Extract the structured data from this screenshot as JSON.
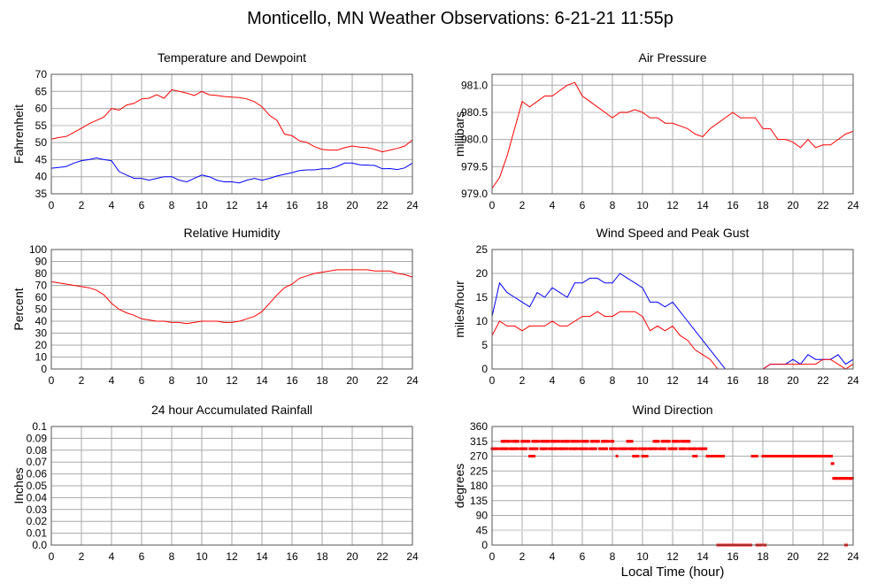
{
  "page": {
    "title": "Monticello, MN Weather Observations: 6-21-21 11:55p",
    "xlabel": "Local Time (hour)"
  },
  "colors": {
    "red": "#ff0000",
    "blue": "#0000ff",
    "grid": "#a8a8a8",
    "grid_highlight": "#dddddd",
    "frame": "#555555"
  },
  "chart_data": [
    {
      "type": "line",
      "title": "Temperature and Dewpoint",
      "xlabel": "",
      "ylabel": "Fahrenheit",
      "xlim": [
        0,
        24
      ],
      "ylim": [
        35,
        70
      ],
      "xticks": [
        0,
        2,
        4,
        6,
        8,
        10,
        12,
        14,
        16,
        18,
        20,
        22,
        24
      ],
      "yticks": [
        35,
        40,
        45,
        50,
        55,
        60,
        65,
        70
      ],
      "ytick_labels": [
        "35",
        "40",
        "45",
        "50",
        "55",
        "60",
        "65",
        "70"
      ],
      "highlight_gridline": 55,
      "x_step": 0.5,
      "series": [
        {
          "name": "Temperature",
          "color": "#ff0000",
          "values": [
            51,
            51.5,
            51.8,
            53,
            54.2,
            55.5,
            56.5,
            57.5,
            60,
            59.5,
            61,
            61.5,
            62.8,
            63,
            64,
            63,
            65.5,
            65,
            64.5,
            63.8,
            65,
            64,
            63.8,
            63.5,
            63.3,
            63.2,
            62.8,
            62,
            60.5,
            58,
            56.5,
            52.5,
            52,
            50.5,
            50,
            48.8,
            48,
            47.8,
            47.8,
            48.5,
            49,
            48.7,
            48.5,
            48,
            47.3,
            47.8,
            48.3,
            49,
            50.8
          ]
        },
        {
          "name": "Dewpoint",
          "color": "#0000ff",
          "values": [
            42.5,
            42.7,
            43,
            44,
            44.7,
            45,
            45.5,
            45,
            44.7,
            41.5,
            40.5,
            39.5,
            39.5,
            39,
            39.5,
            40,
            40,
            39,
            38.5,
            39.5,
            40.5,
            40,
            39,
            38.5,
            38.5,
            38.2,
            39,
            39.5,
            39,
            39.5,
            40.2,
            40.7,
            41.2,
            41.8,
            42,
            42,
            42.3,
            42.3,
            43,
            44,
            44,
            43.5,
            43.4,
            43.3,
            42.3,
            42.4,
            42.1,
            42.6,
            44
          ]
        }
      ]
    },
    {
      "type": "line",
      "title": "Air Pressure",
      "xlabel": "",
      "ylabel": "millibars",
      "xlim": [
        0,
        24
      ],
      "ylim": [
        979.0,
        981.2
      ],
      "xticks": [
        0,
        2,
        4,
        6,
        8,
        10,
        12,
        14,
        16,
        18,
        20,
        22,
        24
      ],
      "yticks": [
        979.0,
        979.5,
        980.0,
        980.5,
        981.0
      ],
      "ytick_labels": [
        "979.0",
        "979.5",
        "980.0",
        "980.5",
        "981.0"
      ],
      "highlight_gridline": 980.5,
      "x_step": 0.5,
      "series": [
        {
          "name": "Pressure",
          "color": "#ff0000",
          "values": [
            979.1,
            979.3,
            979.7,
            980.2,
            980.7,
            980.6,
            980.7,
            980.8,
            980.8,
            980.9,
            981.0,
            981.05,
            980.8,
            980.7,
            980.6,
            980.5,
            980.4,
            980.5,
            980.5,
            980.55,
            980.5,
            980.4,
            980.4,
            980.3,
            980.3,
            980.25,
            980.2,
            980.1,
            980.05,
            980.2,
            980.3,
            980.4,
            980.5,
            980.4,
            980.4,
            980.4,
            980.2,
            980.2,
            980.0,
            980.0,
            979.95,
            979.85,
            980.0,
            979.85,
            979.9,
            979.9,
            980.0,
            980.1,
            980.15
          ]
        }
      ]
    },
    {
      "type": "line",
      "title": "Relative Humidity",
      "xlabel": "",
      "ylabel": "Percent",
      "xlim": [
        0,
        24
      ],
      "ylim": [
        0,
        100
      ],
      "xticks": [
        0,
        2,
        4,
        6,
        8,
        10,
        12,
        14,
        16,
        18,
        20,
        22,
        24
      ],
      "yticks": [
        0,
        10,
        20,
        30,
        40,
        50,
        60,
        70,
        80,
        90,
        100
      ],
      "ytick_labels": [
        "0",
        "10",
        "20",
        "30",
        "40",
        "50",
        "60",
        "70",
        "80",
        "90",
        "100"
      ],
      "x_step": 0.5,
      "series": [
        {
          "name": "Relative Humidity",
          "color": "#ff0000",
          "values": [
            73,
            72,
            71,
            70,
            69,
            68,
            66,
            62,
            55,
            50,
            47,
            45,
            42,
            41,
            40,
            40,
            39,
            39,
            38,
            39,
            40,
            40,
            40,
            39,
            39,
            40,
            42,
            44,
            48,
            55,
            62,
            68,
            71,
            76,
            78,
            80,
            81,
            82,
            83,
            83,
            83,
            83,
            83,
            82,
            82,
            82,
            80,
            79,
            77
          ]
        }
      ]
    },
    {
      "type": "line",
      "title": "Wind Speed and Peak Gust",
      "xlabel": "",
      "ylabel": "miles/hour",
      "xlim": [
        0,
        24
      ],
      "ylim": [
        0,
        25
      ],
      "xticks": [
        0,
        2,
        4,
        6,
        8,
        10,
        12,
        14,
        16,
        18,
        20,
        22,
        24
      ],
      "yticks": [
        0,
        5,
        10,
        15,
        20,
        25
      ],
      "ytick_labels": [
        "0",
        "5",
        "10",
        "15",
        "20",
        "25"
      ],
      "x_step": 0.5,
      "series": [
        {
          "name": "Peak Gust",
          "color": "#0000ff",
          "values": [
            11,
            18,
            16,
            15,
            14,
            13,
            16,
            15,
            17,
            16,
            15,
            18,
            18,
            19,
            19,
            18,
            18,
            20,
            19,
            18,
            17,
            14,
            14,
            13,
            14,
            12,
            10,
            8,
            6,
            4,
            2,
            0,
            0,
            0,
            0,
            0,
            0,
            1,
            1,
            1,
            2,
            1,
            3,
            2,
            2,
            2,
            3,
            1,
            2
          ]
        },
        {
          "name": "Wind Speed",
          "color": "#ff0000",
          "values": [
            7,
            10,
            9,
            9,
            8,
            9,
            9,
            9,
            10,
            9,
            9,
            10,
            11,
            11,
            12,
            11,
            11,
            12,
            12,
            12,
            11,
            8,
            9,
            8,
            9,
            7,
            6,
            4,
            3,
            2,
            0,
            0,
            0,
            0,
            0,
            0,
            0,
            1,
            1,
            1,
            1,
            1,
            1,
            1,
            2,
            2,
            1,
            0,
            1
          ]
        }
      ]
    },
    {
      "type": "line",
      "title": "24 hour Accumulated Rainfall",
      "xlabel": "",
      "ylabel": "Inches",
      "xlim": [
        0,
        24
      ],
      "ylim": [
        0,
        0.1
      ],
      "xticks": [
        0,
        2,
        4,
        6,
        8,
        10,
        12,
        14,
        16,
        18,
        20,
        22,
        24
      ],
      "yticks": [
        0,
        0.01,
        0.02,
        0.03,
        0.04,
        0.05,
        0.06,
        0.07,
        0.08,
        0.09,
        0.1
      ],
      "ytick_labels": [
        "0.0",
        "0.01",
        "0.02",
        "0.03",
        "0.04",
        "0.05",
        "0.06",
        "0.07",
        "0.08",
        "0.09",
        "0.1"
      ],
      "x_step": 24,
      "series": [
        {
          "name": "Rainfall",
          "color": "#ff0000",
          "values": [
            0,
            0
          ]
        }
      ]
    },
    {
      "type": "scatter",
      "title": "Wind Direction",
      "xlabel": "Local Time (hour)",
      "ylabel": "degrees",
      "xlim": [
        0,
        24
      ],
      "ylim": [
        0,
        360
      ],
      "xticks": [
        0,
        2,
        4,
        6,
        8,
        10,
        12,
        14,
        16,
        18,
        20,
        22,
        24
      ],
      "yticks": [
        0,
        45,
        90,
        135,
        180,
        225,
        270,
        315,
        360
      ],
      "ytick_labels": [
        "0",
        "45",
        "90",
        "135",
        "180",
        "225",
        "270",
        "315",
        "360"
      ],
      "highlight_gridline": 45,
      "runs": [
        {
          "deg": 315,
          "from": 0.6,
          "to": 8.1,
          "sparse": true
        },
        {
          "deg": 315,
          "from": 9.0,
          "to": 9.3,
          "sparse": true
        },
        {
          "deg": 315,
          "from": 10.7,
          "to": 13.1,
          "sparse": true
        },
        {
          "deg": 292.5,
          "from": 0.0,
          "to": 14.3,
          "sparse": true
        },
        {
          "deg": 270,
          "from": 2.5,
          "to": 2.8
        },
        {
          "deg": 270,
          "from": 8.3,
          "to": 8.35
        },
        {
          "deg": 270,
          "from": 9.4,
          "to": 9.7
        },
        {
          "deg": 270,
          "from": 10.0,
          "to": 10.3
        },
        {
          "deg": 270,
          "from": 13.4,
          "to": 13.6
        },
        {
          "deg": 270,
          "from": 14.3,
          "to": 15.4
        },
        {
          "deg": 270,
          "from": 17.3,
          "to": 17.6
        },
        {
          "deg": 270,
          "from": 18.0,
          "to": 22.6
        },
        {
          "deg": 247.5,
          "from": 22.6,
          "to": 22.7
        },
        {
          "deg": 202.5,
          "from": 22.7,
          "to": 24.0
        },
        {
          "deg": 0,
          "from": 15.0,
          "to": 15.3
        },
        {
          "deg": 0,
          "from": 15.4,
          "to": 17.2
        },
        {
          "deg": 0,
          "from": 17.6,
          "to": 17.9
        },
        {
          "deg": 0,
          "from": 18.1,
          "to": 18.2
        },
        {
          "deg": 0,
          "from": 23.5,
          "to": 23.6
        }
      ],
      "color": "#ff0000"
    }
  ]
}
